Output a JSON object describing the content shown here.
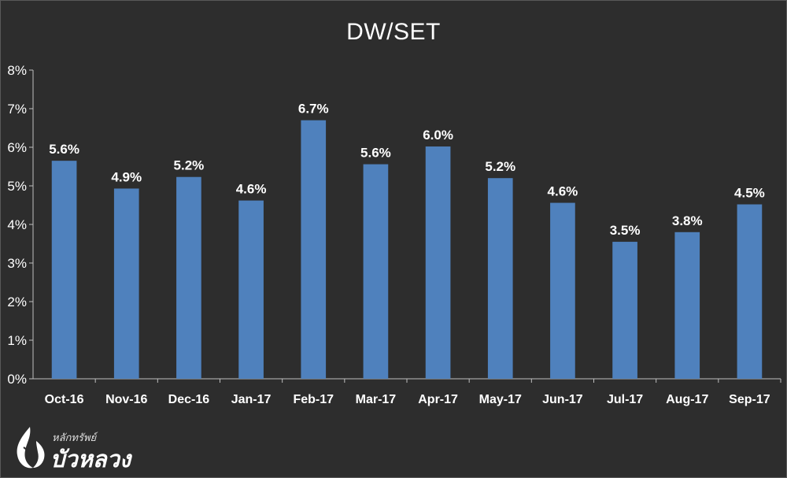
{
  "chart_data": {
    "type": "bar",
    "title": "DW/SET",
    "categories": [
      "Oct-16",
      "Nov-16",
      "Dec-16",
      "Jan-17",
      "Feb-17",
      "Mar-17",
      "Apr-17",
      "May-17",
      "Jun-17",
      "Jul-17",
      "Aug-17",
      "Sep-17"
    ],
    "values": [
      5.65,
      4.93,
      5.23,
      4.62,
      6.7,
      5.56,
      6.02,
      5.2,
      4.56,
      3.55,
      3.8,
      4.52
    ],
    "data_labels": [
      "5.6%",
      "4.9%",
      "5.2%",
      "4.6%",
      "6.7%",
      "5.6%",
      "6.0%",
      "5.2%",
      "4.6%",
      "3.5%",
      "3.8%",
      "4.5%"
    ],
    "y_ticks": [
      "0%",
      "1%",
      "2%",
      "3%",
      "4%",
      "5%",
      "6%",
      "7%",
      "8%"
    ],
    "ylim": [
      0,
      8
    ],
    "grid": false,
    "bar_color": "#4f81bd"
  },
  "logo": {
    "small_text": "หลักทรัพย์",
    "big_text": "บัวหลวง"
  }
}
